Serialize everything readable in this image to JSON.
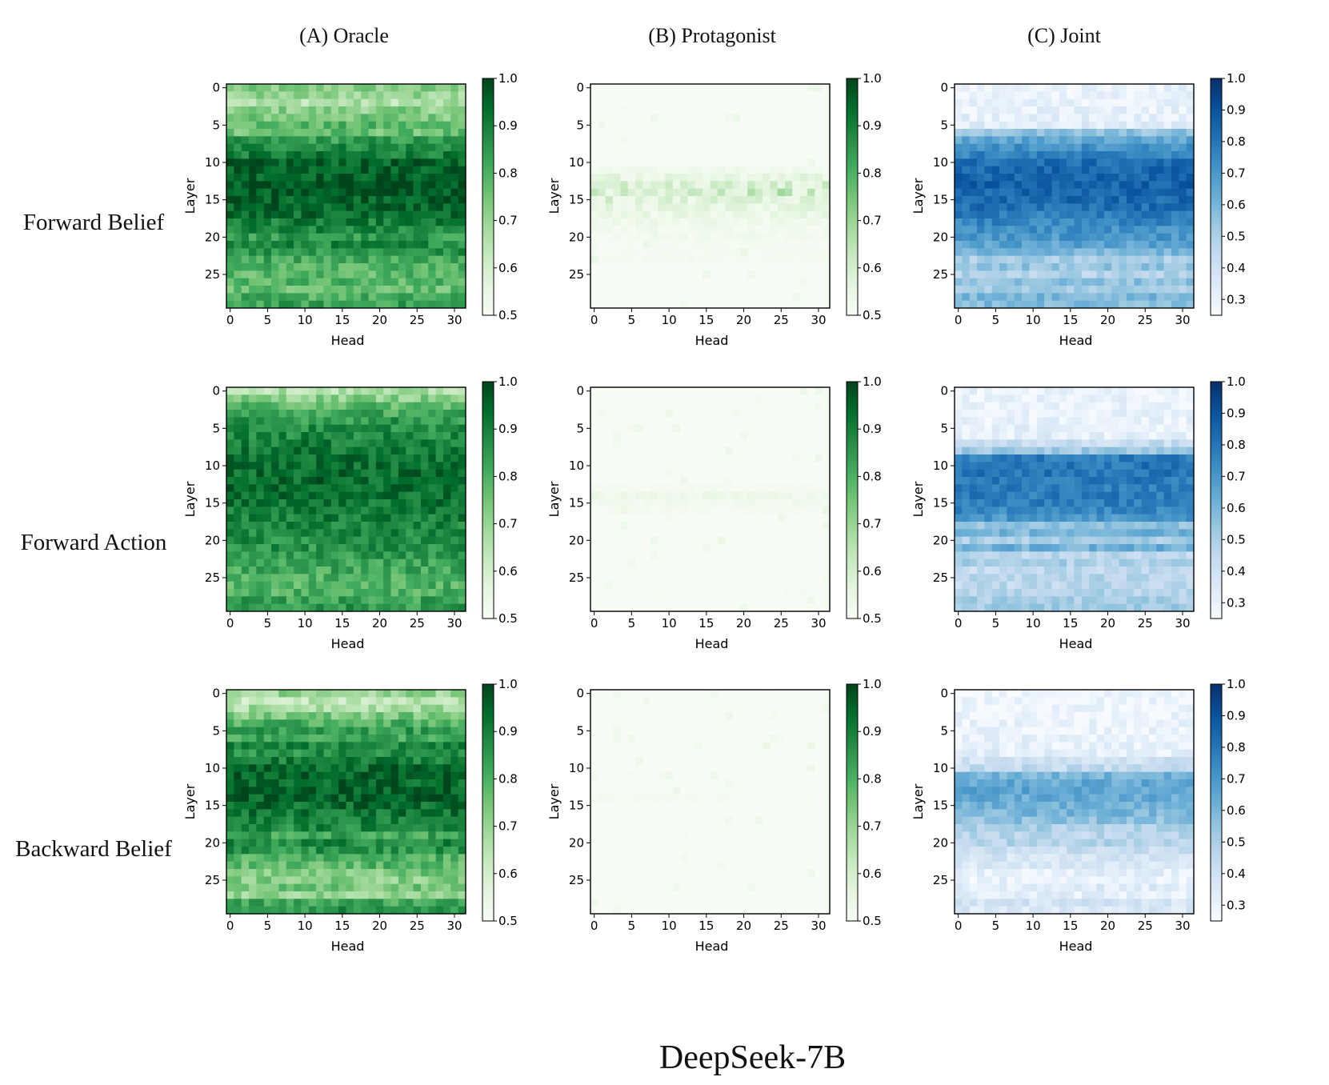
{
  "figure_title": "DeepSeek-7B",
  "column_titles": [
    "(A) Oracle",
    "(B) Protagonist",
    "(C) Joint"
  ],
  "row_titles": [
    "Forward Belief",
    "Forward Action",
    "Backward Belief"
  ],
  "colors": {
    "greens_low": "#f7fcf5",
    "greens_high": "#00441b",
    "blues_low": "#f7fbff",
    "blues_high": "#08306b"
  },
  "chart_data": {
    "type": "heatmap",
    "grid": "3x3 small multiples",
    "xlabel": "Head",
    "ylabel": "Layer",
    "x_ticks": [
      0,
      5,
      10,
      15,
      20,
      25,
      30
    ],
    "y_ticks": [
      0,
      5,
      10,
      15,
      20,
      25
    ],
    "n_heads": 32,
    "n_layers": 30,
    "colormaps": {
      "Oracle": {
        "cmap": "Greens",
        "vmin": 0.5,
        "vmax": 1.0,
        "ticks": [
          "0.5",
          "0.6",
          "0.7",
          "0.8",
          "0.9",
          "1.0"
        ]
      },
      "Protagonist": {
        "cmap": "Greens",
        "vmin": 0.5,
        "vmax": 1.0,
        "ticks": [
          "0.5",
          "0.6",
          "0.7",
          "0.8",
          "0.9",
          "1.0"
        ]
      },
      "Joint": {
        "cmap": "Blues",
        "vmin": 0.25,
        "vmax": 1.0,
        "ticks": [
          "0.3",
          "0.4",
          "0.5",
          "0.6",
          "0.7",
          "0.8",
          "0.9",
          "1.0"
        ]
      }
    },
    "panels": [
      {
        "row": "Forward Belief",
        "col": "Oracle",
        "layer_profile": [
          0.72,
          0.7,
          0.66,
          0.72,
          0.74,
          0.78,
          0.76,
          0.84,
          0.88,
          0.9,
          0.95,
          0.96,
          0.96,
          0.97,
          0.97,
          0.96,
          0.95,
          0.93,
          0.9,
          0.88,
          0.84,
          0.88,
          0.86,
          0.82,
          0.8,
          0.78,
          0.79,
          0.77,
          0.8,
          0.83
        ]
      },
      {
        "row": "Forward Belief",
        "col": "Protagonist",
        "layer_profile": [
          0.5,
          0.5,
          0.5,
          0.5,
          0.5,
          0.5,
          0.5,
          0.5,
          0.5,
          0.5,
          0.5,
          0.52,
          0.55,
          0.58,
          0.6,
          0.57,
          0.55,
          0.54,
          0.53,
          0.52,
          0.52,
          0.51,
          0.51,
          0.51,
          0.5,
          0.5,
          0.5,
          0.5,
          0.5,
          0.5
        ]
      },
      {
        "row": "Forward Belief",
        "col": "Joint",
        "layer_profile": [
          0.3,
          0.3,
          0.3,
          0.31,
          0.32,
          0.33,
          0.55,
          0.65,
          0.72,
          0.76,
          0.82,
          0.84,
          0.85,
          0.86,
          0.84,
          0.83,
          0.82,
          0.78,
          0.75,
          0.72,
          0.7,
          0.66,
          0.6,
          0.5,
          0.55,
          0.48,
          0.56,
          0.52,
          0.6,
          0.58
        ]
      },
      {
        "row": "Forward Action",
        "col": "Oracle",
        "layer_profile": [
          0.66,
          0.72,
          0.78,
          0.82,
          0.85,
          0.87,
          0.88,
          0.9,
          0.91,
          0.92,
          0.93,
          0.93,
          0.94,
          0.94,
          0.93,
          0.92,
          0.91,
          0.9,
          0.89,
          0.88,
          0.87,
          0.86,
          0.85,
          0.83,
          0.82,
          0.8,
          0.79,
          0.8,
          0.83,
          0.85
        ]
      },
      {
        "row": "Forward Action",
        "col": "Protagonist",
        "layer_profile": [
          0.5,
          0.5,
          0.5,
          0.5,
          0.5,
          0.5,
          0.5,
          0.5,
          0.5,
          0.5,
          0.5,
          0.5,
          0.5,
          0.51,
          0.53,
          0.52,
          0.51,
          0.5,
          0.5,
          0.5,
          0.5,
          0.5,
          0.5,
          0.5,
          0.5,
          0.5,
          0.5,
          0.5,
          0.5,
          0.5
        ]
      },
      {
        "row": "Forward Action",
        "col": "Joint",
        "layer_profile": [
          0.3,
          0.3,
          0.3,
          0.3,
          0.3,
          0.31,
          0.32,
          0.42,
          0.52,
          0.78,
          0.8,
          0.8,
          0.79,
          0.78,
          0.78,
          0.77,
          0.75,
          0.7,
          0.56,
          0.6,
          0.5,
          0.62,
          0.46,
          0.5,
          0.44,
          0.47,
          0.45,
          0.48,
          0.5,
          0.52
        ]
      },
      {
        "row": "Backward Belief",
        "col": "Oracle",
        "layer_profile": [
          0.7,
          0.64,
          0.68,
          0.74,
          0.8,
          0.84,
          0.82,
          0.88,
          0.86,
          0.9,
          0.94,
          0.95,
          0.94,
          0.96,
          0.95,
          0.93,
          0.92,
          0.9,
          0.88,
          0.82,
          0.88,
          0.86,
          0.8,
          0.78,
          0.74,
          0.72,
          0.74,
          0.7,
          0.82,
          0.86
        ]
      },
      {
        "row": "Backward Belief",
        "col": "Protagonist",
        "layer_profile": [
          0.5,
          0.5,
          0.5,
          0.5,
          0.5,
          0.5,
          0.5,
          0.5,
          0.5,
          0.5,
          0.5,
          0.5,
          0.5,
          0.5,
          0.51,
          0.5,
          0.5,
          0.5,
          0.5,
          0.5,
          0.5,
          0.5,
          0.5,
          0.5,
          0.5,
          0.5,
          0.5,
          0.5,
          0.5,
          0.5
        ]
      },
      {
        "row": "Backward Belief",
        "col": "Joint",
        "layer_profile": [
          0.28,
          0.28,
          0.28,
          0.28,
          0.29,
          0.29,
          0.3,
          0.3,
          0.32,
          0.4,
          0.44,
          0.6,
          0.64,
          0.66,
          0.64,
          0.62,
          0.6,
          0.56,
          0.5,
          0.46,
          0.48,
          0.42,
          0.38,
          0.36,
          0.32,
          0.3,
          0.34,
          0.32,
          0.38,
          0.36
        ]
      }
    ]
  }
}
